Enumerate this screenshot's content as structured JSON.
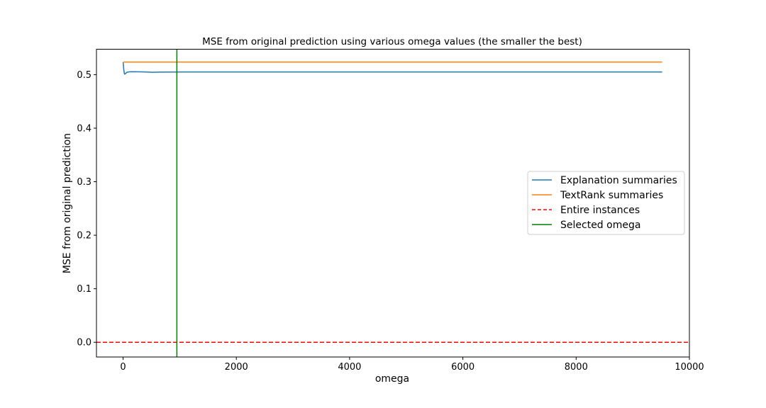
{
  "chart_data": {
    "type": "line",
    "title": "MSE from original prediction using various omega values (the smaller the best)",
    "xlabel": "omega",
    "ylabel": "MSE from original prediction",
    "xlim": [
      -470,
      10000
    ],
    "ylim": [
      -0.0275,
      0.5475
    ],
    "xticks": [
      0,
      2000,
      4000,
      6000,
      8000,
      10000
    ],
    "yticks": [
      0.0,
      0.1,
      0.2,
      0.3,
      0.4,
      0.5
    ],
    "xtick_labels": [
      "0",
      "2000",
      "4000",
      "6000",
      "8000",
      "10000"
    ],
    "ytick_labels": [
      "0.0",
      "0.1",
      "0.2",
      "0.3",
      "0.4",
      "0.5"
    ],
    "grid": false,
    "legend_position": "center-right",
    "series": [
      {
        "name": "Explanation summaries",
        "color": "#1f77b4",
        "style": "solid",
        "points": [
          [
            0,
            0.523
          ],
          [
            6,
            0.518
          ],
          [
            12,
            0.51
          ],
          [
            20,
            0.5035
          ],
          [
            28,
            0.501
          ],
          [
            38,
            0.5015
          ],
          [
            50,
            0.503
          ],
          [
            70,
            0.5045
          ],
          [
            100,
            0.5052
          ],
          [
            150,
            0.5055
          ],
          [
            250,
            0.5053
          ],
          [
            350,
            0.5051
          ],
          [
            450,
            0.5049
          ],
          [
            500,
            0.5045
          ],
          [
            600,
            0.5046
          ],
          [
            700,
            0.5048
          ],
          [
            1000,
            0.505
          ],
          [
            2000,
            0.505
          ],
          [
            4000,
            0.505
          ],
          [
            6000,
            0.505
          ],
          [
            8000,
            0.505
          ],
          [
            9520,
            0.505
          ]
        ]
      },
      {
        "name": "TextRank summaries",
        "color": "#ff7f0e",
        "style": "solid",
        "points": [
          [
            0,
            0.5235
          ],
          [
            9520,
            0.5235
          ]
        ]
      },
      {
        "name": "Entire instances",
        "color": "#ff0000",
        "style": "dashed",
        "hline": 0.0
      },
      {
        "name": "Selected omega",
        "color": "#008000",
        "style": "solid",
        "vline": 950
      }
    ]
  }
}
